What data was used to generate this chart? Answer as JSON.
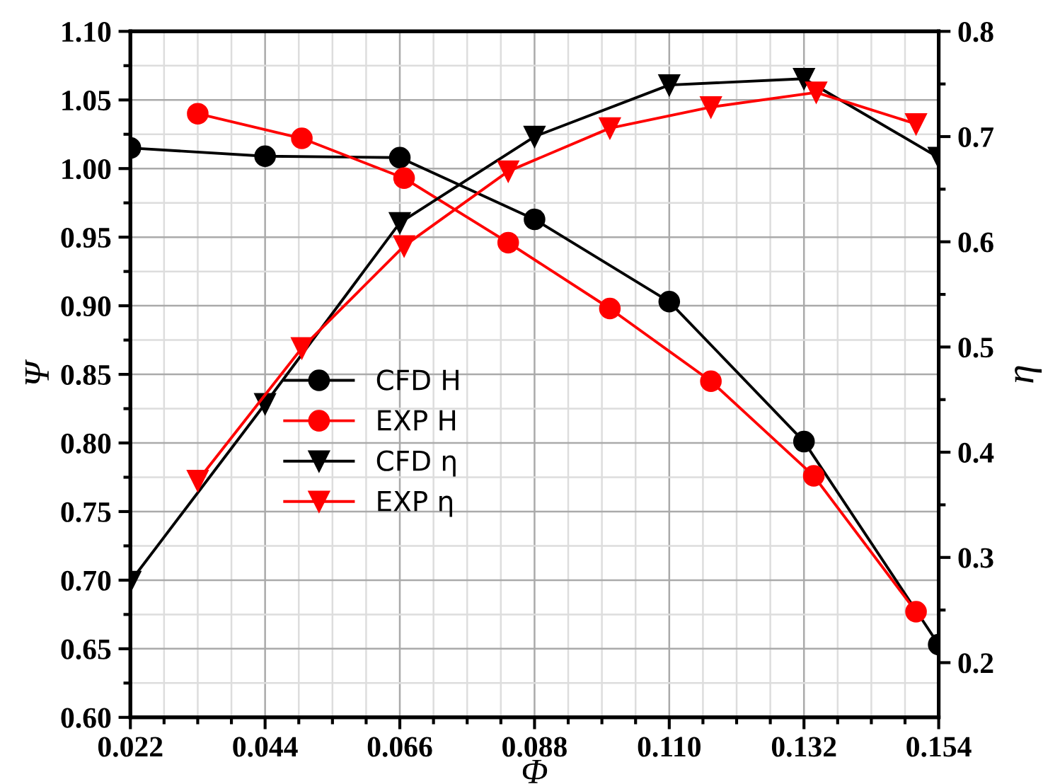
{
  "chart_data": {
    "type": "line",
    "xlabel": "Φ",
    "ylabel": "Ψ",
    "y2label": "η",
    "xlim": [
      0.022,
      0.154
    ],
    "xticks": [
      {
        "value": 0.022,
        "label": "0.022"
      },
      {
        "value": 0.044,
        "label": "0.044"
      },
      {
        "value": 0.066,
        "label": "0.066"
      },
      {
        "value": 0.088,
        "label": "0.088"
      },
      {
        "value": 0.11,
        "label": "0.110"
      },
      {
        "value": 0.132,
        "label": "0.132"
      },
      {
        "value": 0.154,
        "label": "0.154"
      }
    ],
    "ylim": [
      0.6,
      1.1
    ],
    "yticks": [
      {
        "value": 0.6,
        "label": "0.60"
      },
      {
        "value": 0.65,
        "label": "0.65"
      },
      {
        "value": 0.7,
        "label": "0.70"
      },
      {
        "value": 0.75,
        "label": "0.75"
      },
      {
        "value": 0.8,
        "label": "0.80"
      },
      {
        "value": 0.85,
        "label": "0.85"
      },
      {
        "value": 0.9,
        "label": "0.90"
      },
      {
        "value": 0.95,
        "label": "0.95"
      },
      {
        "value": 1.0,
        "label": "1.00"
      },
      {
        "value": 1.05,
        "label": "1.05"
      },
      {
        "value": 1.1,
        "label": "1.10"
      }
    ],
    "y2lim": [
      0.148,
      0.8
    ],
    "y2ticks": [
      0.2,
      0.3,
      0.4,
      0.5,
      0.6,
      0.7,
      0.8
    ],
    "grid": true,
    "legend": "center",
    "line_style": "solid",
    "series": [
      {
        "name": "CFD H",
        "color": "#000000",
        "marker": "circle",
        "x": [
          0.022,
          0.044,
          0.066,
          0.088,
          0.11,
          0.132,
          0.154
        ],
        "values": [
          1.015,
          1.009,
          1.008,
          0.963,
          0.903,
          0.801,
          0.653
        ]
      },
      {
        "name": "EXP H",
        "color": "#ff0000",
        "marker": "circle",
        "x": [
          0.033,
          0.05,
          0.0667,
          0.0837,
          0.1003,
          0.1168,
          0.1336,
          0.1503
        ],
        "values": [
          1.04,
          1.022,
          0.993,
          0.946,
          0.898,
          0.845,
          0.776,
          0.677
        ]
      },
      {
        "name": "CFD η",
        "color": "#000000",
        "marker": "triangle",
        "axis": "y2",
        "x": [
          0.022,
          0.044,
          0.066,
          0.088,
          0.11,
          0.132,
          0.154
        ],
        "values": [
          0.277,
          0.446,
          0.618,
          0.7,
          0.749,
          0.755,
          0.68
        ]
      },
      {
        "name": "EXP η",
        "color": "#ff0000",
        "marker": "triangle",
        "axis": "y2",
        "x": [
          0.033,
          0.05,
          0.0667,
          0.0837,
          0.1003,
          0.1168,
          0.134,
          0.1503
        ],
        "values": [
          0.373,
          0.499,
          0.596,
          0.667,
          0.708,
          0.728,
          0.742,
          0.712
        ]
      }
    ]
  }
}
